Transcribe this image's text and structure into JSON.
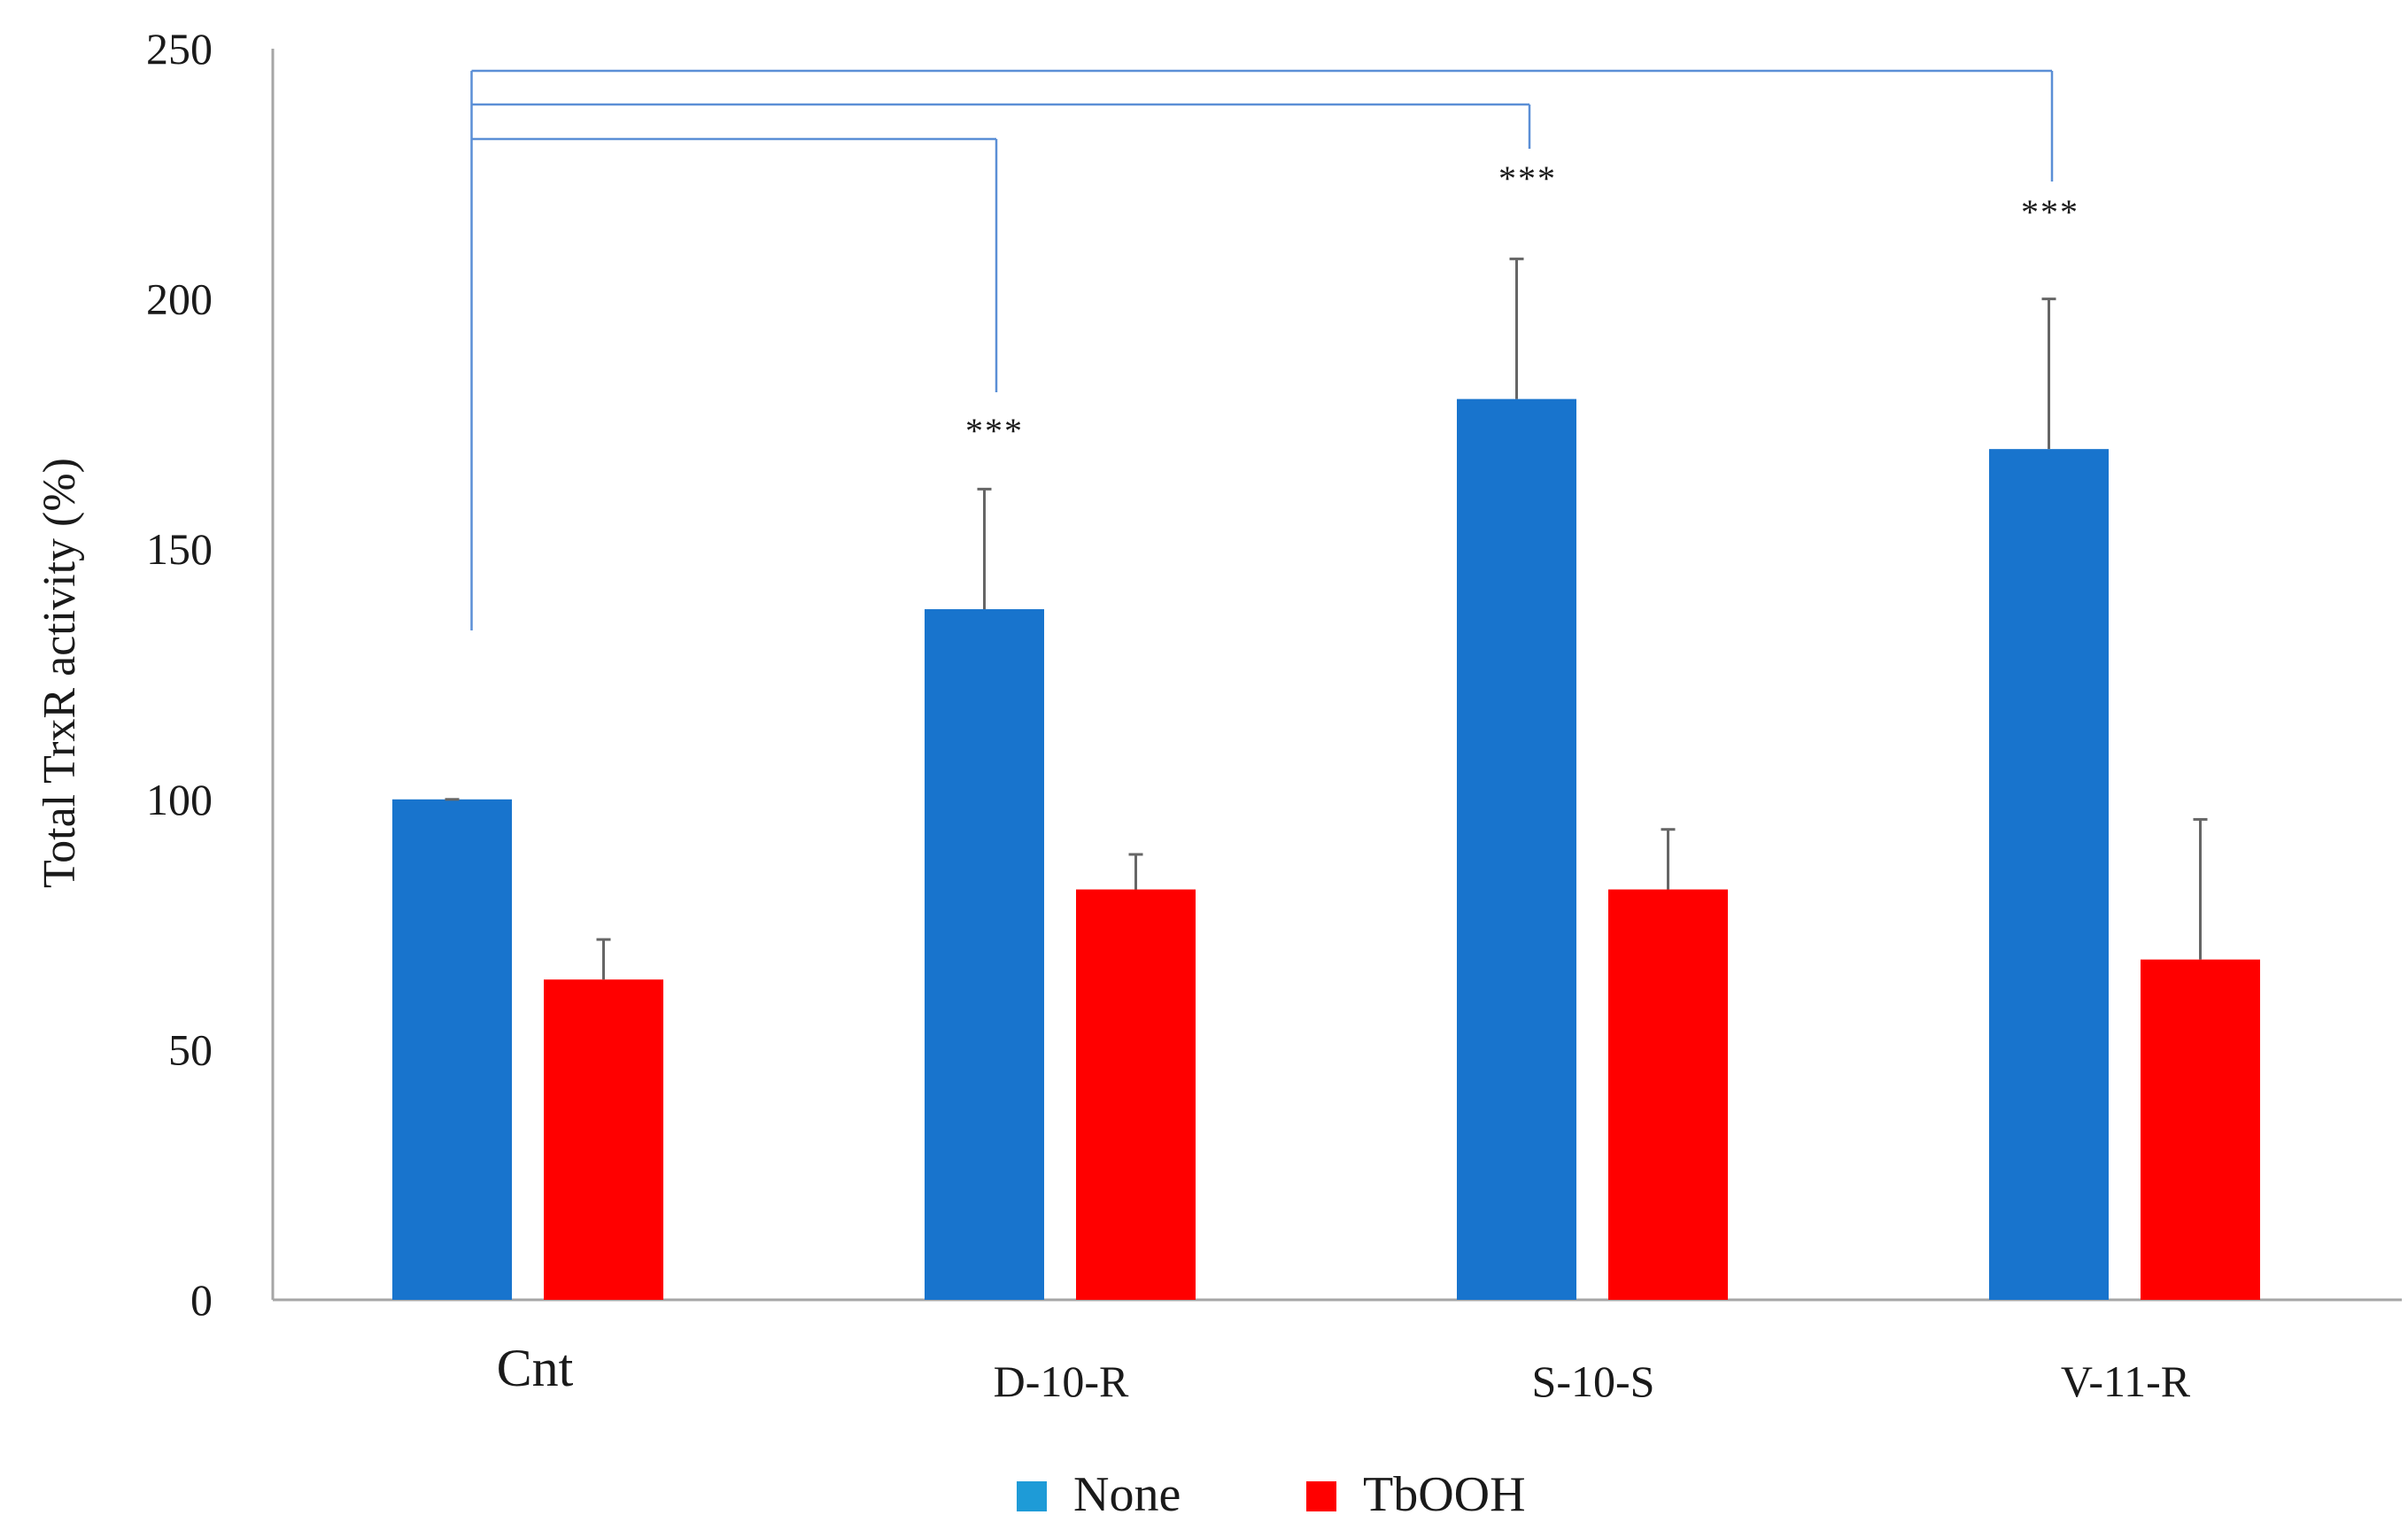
{
  "chart_data": {
    "type": "bar",
    "title": "",
    "xlabel": "",
    "ylabel": "Total TrxR activity (%)",
    "ylim": [
      0,
      250
    ],
    "yticks": [
      0,
      50,
      100,
      150,
      200,
      250
    ],
    "categories": [
      "Cnt",
      "D-10-R",
      "S-10-S",
      "V-11-R"
    ],
    "series": [
      {
        "name": "None",
        "color": "#1874CD",
        "values": [
          100,
          138,
          180,
          170
        ],
        "errors": [
          0,
          24,
          28,
          30
        ]
      },
      {
        "name": "TbOOH",
        "color": "#FF0000",
        "values": [
          64,
          82,
          82,
          68
        ],
        "errors": [
          8,
          7,
          12,
          28
        ]
      }
    ],
    "significance": [
      {
        "from": "Cnt",
        "to": "D-10-R",
        "label": "***"
      },
      {
        "from": "Cnt",
        "to": "S-10-S",
        "label": "***"
      },
      {
        "from": "Cnt",
        "to": "V-11-R",
        "label": "***"
      }
    ],
    "legend_position": "bottom-center",
    "legend_marker_colors": [
      "#1E9BD7",
      "#FF0000"
    ],
    "bracket_color": "#5B8FD6"
  }
}
